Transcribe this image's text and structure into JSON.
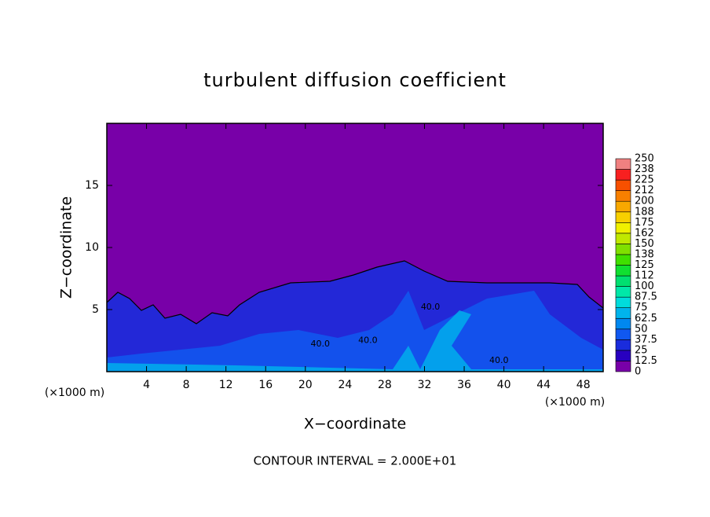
{
  "chart_data": {
    "type": "contour",
    "title": "turbulent diffusion coefficient",
    "x_label": "X−coordinate",
    "y_label": "Z−coordinate",
    "x_unit_left": "(×1000 m)",
    "x_unit_right": "(×1000 m)",
    "note": "CONTOUR INTERVAL = 2.000E+01",
    "xlim": [
      0,
      50
    ],
    "xticks": [
      4,
      8,
      12,
      16,
      20,
      24,
      28,
      32,
      36,
      40,
      44,
      48
    ],
    "ylim": [
      0,
      20
    ],
    "yticks": [
      5,
      10,
      15
    ],
    "colorbar": {
      "levels": [
        0,
        12.5,
        25,
        37.5,
        50,
        62.5,
        75,
        87.5,
        100,
        {
          "value": 112.5,
          "label": "112"
        },
        125,
        {
          "value": 137.5,
          "label": "138"
        },
        150,
        {
          "value": 162.5,
          "label": "162"
        },
        175,
        {
          "value": 187.5,
          "label": "188"
        },
        200,
        {
          "value": 212.5,
          "label": "212"
        },
        225,
        {
          "value": 237.5,
          "label": "238"
        },
        250
      ],
      "colors": [
        "#7800a8",
        "#2800c0",
        "#1a2cdc",
        "#1058f0",
        "#0088f0",
        "#00b4ec",
        "#00dcdc",
        "#00e8a8",
        "#00e070",
        "#10e030",
        "#40e000",
        "#80e000",
        "#c0e800",
        "#f0f000",
        "#f8d000",
        "#f8a800",
        "#f88000",
        "#f85000",
        "#f82020",
        "#f08080"
      ]
    },
    "contour_labels": [
      {
        "text": "40.0",
        "x": 21.5,
        "z": 2.2
      },
      {
        "text": "40.0",
        "x": 26.3,
        "z": 2.5
      },
      {
        "text": "40.0",
        "x": 32.6,
        "z": 5.2
      },
      {
        "text": "40.0",
        "x": 39.5,
        "z": 0.9
      }
    ]
  }
}
